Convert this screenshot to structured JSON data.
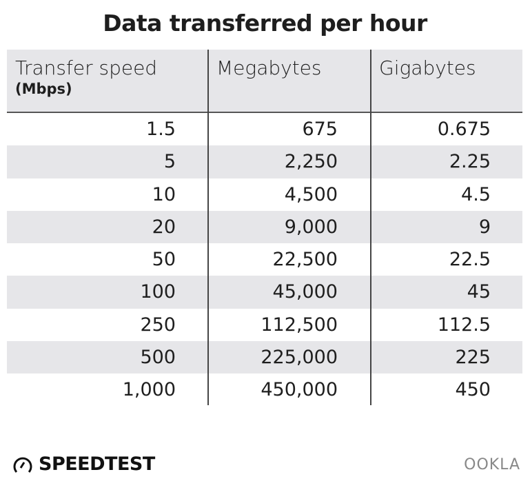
{
  "chart_data": {
    "type": "table",
    "title": "Data transferred per hour",
    "columns": [
      {
        "label": "Transfer speed",
        "sublabel": "(Mbps)"
      },
      {
        "label": "Megabytes"
      },
      {
        "label": "Gigabytes"
      }
    ],
    "rows": [
      [
        "1.5",
        "675",
        "0.675"
      ],
      [
        "5",
        "2,250",
        "2.25"
      ],
      [
        "10",
        "4,500",
        "4.5"
      ],
      [
        "20",
        "9,000",
        "9"
      ],
      [
        "50",
        "22,500",
        "22.5"
      ],
      [
        "100",
        "45,000",
        "45"
      ],
      [
        "250",
        "112,500",
        "112.5"
      ],
      [
        "500",
        "225,000",
        "225"
      ],
      [
        "1,000",
        "450,000",
        "450"
      ]
    ],
    "stripe_color": "#e6e6e9"
  },
  "footer": {
    "brand": "SPEEDTEST",
    "brand_icon": "speedometer-icon",
    "partner": "OOKLA"
  }
}
